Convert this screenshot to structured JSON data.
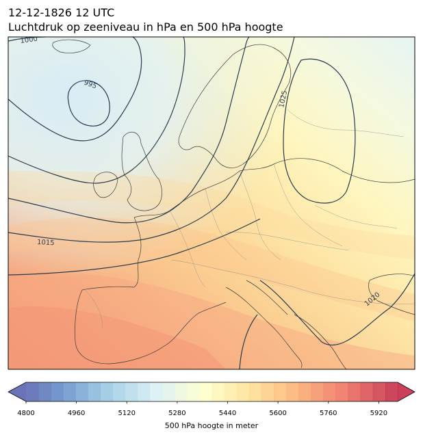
{
  "title": {
    "line1": "12-12-1826 12 UTC",
    "line2": "Luchtdruk op zeeniveau in hPa en 500 hPa hoogte"
  },
  "colors": {
    "isobar": "#26394d",
    "coast": "#3a3a3a",
    "border": "#8a8a8a"
  },
  "isobar_labels": [
    "1000",
    "995",
    "1025",
    "1015",
    "1020"
  ],
  "colorbar": {
    "label": "500 hPa hoogte in meter",
    "ticks": [
      "4800",
      "4960",
      "5120",
      "5280",
      "5440",
      "5600",
      "5760",
      "5920"
    ],
    "min": 4800,
    "max": 5980,
    "step": 40,
    "extend": "both",
    "colormap": "RdYlBu_r"
  }
}
